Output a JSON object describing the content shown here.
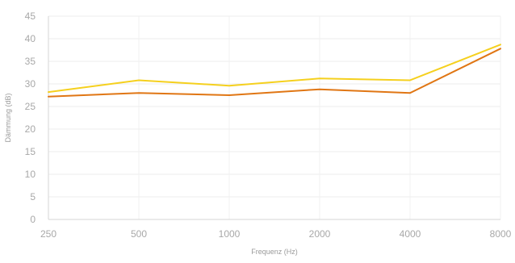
{
  "chart_data": {
    "type": "line",
    "xlabel": "Frequenz (Hz)",
    "ylabel": "Dämmung (dB)",
    "categories": [
      "250",
      "500",
      "1000",
      "2000",
      "4000",
      "8000"
    ],
    "x_scale": "log",
    "ylim": [
      0,
      45
    ],
    "yticks": [
      0,
      5,
      10,
      15,
      20,
      25,
      30,
      35,
      40,
      45
    ],
    "grid": true,
    "legend": "none",
    "series": [
      {
        "color": "#f5d01e",
        "values": [
          28.2,
          30.8,
          29.6,
          31.2,
          30.8,
          38.7
        ]
      },
      {
        "color": "#e07614",
        "values": [
          27.2,
          28.0,
          27.5,
          28.8,
          28.0,
          37.8
        ]
      }
    ]
  }
}
